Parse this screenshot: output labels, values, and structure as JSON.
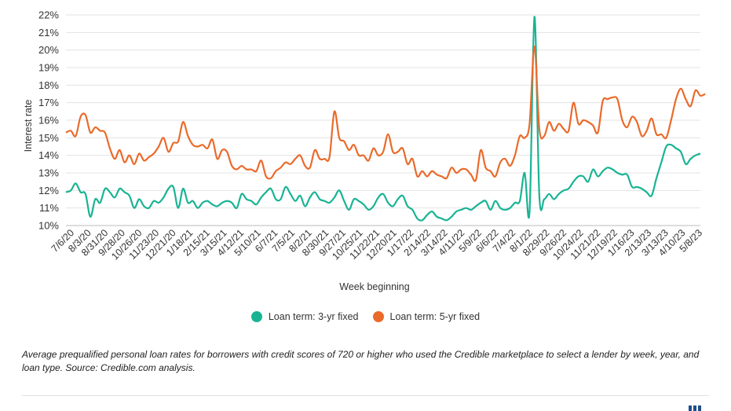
{
  "chart_data": {
    "type": "line",
    "title": "",
    "xlabel": "Week beginning",
    "ylabel": "Interest rate",
    "ylim": [
      10,
      22
    ],
    "yticks": [
      "10%",
      "11%",
      "12%",
      "13%",
      "14%",
      "15%",
      "16%",
      "17%",
      "18%",
      "19%",
      "20%",
      "21%",
      "22%"
    ],
    "grid": "horizontal",
    "legend_position": "bottom-center",
    "x_tick_labels": [
      "7/6/20",
      "8/3/20",
      "8/31/20",
      "9/28/20",
      "10/26/20",
      "11/23/20",
      "12/21/20",
      "1/18/21",
      "2/15/21",
      "3/15/21",
      "4/12/21",
      "5/10/21",
      "6/7/21",
      "7/5/21",
      "8/2/21",
      "8/30/21",
      "9/27/21",
      "10/25/21",
      "11/22/21",
      "12/20/21",
      "1/17/22",
      "2/14/22",
      "3/14/22",
      "4/11/22",
      "5/9/22",
      "6/6/22",
      "7/4/22",
      "8/1/22",
      "8/29/22",
      "9/26/22",
      "10/24/22",
      "11/21/22",
      "12/19/22",
      "1/16/23",
      "2/13/23",
      "3/13/23",
      "4/10/23",
      "5/8/23"
    ],
    "series": [
      {
        "name": "Loan term: 3-yr fixed",
        "color": "#19b394",
        "values": [
          11.9,
          12.0,
          12.4,
          11.9,
          11.8,
          10.5,
          11.5,
          11.3,
          12.1,
          11.9,
          11.6,
          12.1,
          11.9,
          11.7,
          11.0,
          11.5,
          11.1,
          11.0,
          11.4,
          11.3,
          11.6,
          12.1,
          12.2,
          11.0,
          12.1,
          11.3,
          11.4,
          11.0,
          11.3,
          11.4,
          11.2,
          11.1,
          11.3,
          11.4,
          11.3,
          11.0,
          11.8,
          11.5,
          11.4,
          11.2,
          11.6,
          11.9,
          12.1,
          11.5,
          11.5,
          12.2,
          11.8,
          11.4,
          11.7,
          11.1,
          11.6,
          11.9,
          11.5,
          11.4,
          11.3,
          11.6,
          12.0,
          11.4,
          10.9,
          11.5,
          11.4,
          11.2,
          10.9,
          11.1,
          11.6,
          11.8,
          11.3,
          11.1,
          11.5,
          11.7,
          11.1,
          10.9,
          10.4,
          10.3,
          10.6,
          10.8,
          10.5,
          10.4,
          10.3,
          10.5,
          10.8,
          10.9,
          11.0,
          10.9,
          11.1,
          11.3,
          11.4,
          10.9,
          11.4,
          11.0,
          10.9,
          11.0,
          11.3,
          11.4,
          13.0,
          10.8,
          21.9,
          11.7,
          11.5,
          11.8,
          11.5,
          11.8,
          12.0,
          12.1,
          12.5,
          12.8,
          12.8,
          12.5,
          13.2,
          12.8,
          13.1,
          13.3,
          13.2,
          13.0,
          12.9,
          12.9,
          12.2,
          12.2,
          12.1,
          11.9,
          11.7,
          12.7,
          13.6,
          14.5,
          14.6,
          14.4,
          14.2,
          13.5,
          13.8,
          14.0,
          14.1
        ]
      },
      {
        "name": "Loan term: 5-yr fixed",
        "color": "#ea6a2a",
        "values": [
          15.3,
          15.4,
          15.1,
          16.2,
          16.3,
          15.3,
          15.6,
          15.4,
          15.3,
          14.4,
          13.8,
          14.3,
          13.6,
          14.0,
          13.5,
          14.1,
          13.7,
          13.9,
          14.1,
          14.5,
          15.0,
          14.2,
          14.7,
          14.8,
          15.9,
          15.1,
          14.6,
          14.5,
          14.6,
          14.4,
          14.9,
          13.8,
          14.3,
          14.2,
          13.4,
          13.2,
          13.4,
          13.2,
          13.2,
          13.1,
          13.7,
          12.8,
          12.7,
          13.1,
          13.3,
          13.6,
          13.5,
          13.8,
          14.0,
          13.4,
          13.3,
          14.3,
          13.8,
          13.8,
          13.9,
          16.5,
          15.0,
          14.8,
          14.3,
          14.6,
          14.0,
          14.0,
          13.7,
          14.4,
          14.0,
          14.2,
          15.2,
          14.2,
          14.2,
          14.4,
          13.5,
          13.8,
          12.8,
          13.1,
          12.8,
          13.1,
          12.9,
          12.8,
          12.7,
          13.3,
          13.0,
          13.2,
          13.2,
          12.9,
          12.6,
          14.3,
          13.3,
          13.1,
          12.8,
          13.6,
          13.8,
          13.4,
          14.0,
          15.1,
          15.0,
          15.8,
          20.2,
          15.5,
          15.1,
          15.9,
          15.4,
          15.8,
          15.5,
          15.4,
          17.0,
          15.8,
          16.0,
          15.9,
          15.7,
          15.3,
          17.1,
          17.2,
          17.3,
          17.2,
          16.0,
          15.6,
          16.2,
          15.9,
          15.1,
          15.4,
          16.1,
          15.2,
          15.2,
          15.0,
          16.0,
          17.2,
          17.8,
          17.2,
          16.8,
          17.7,
          17.4,
          17.5
        ]
      }
    ]
  },
  "legend": {
    "items": [
      {
        "label": "Loan term: 3-yr fixed",
        "color": "#19b394"
      },
      {
        "label": "Loan term: 5-yr fixed",
        "color": "#ea6a2a"
      }
    ]
  },
  "caption": "Average prequalified personal loan rates for borrowers with credit scores of 720 or higher who used the Credible marketplace to select a lender by week, year, and loan type. Source: Credible.com analysis."
}
